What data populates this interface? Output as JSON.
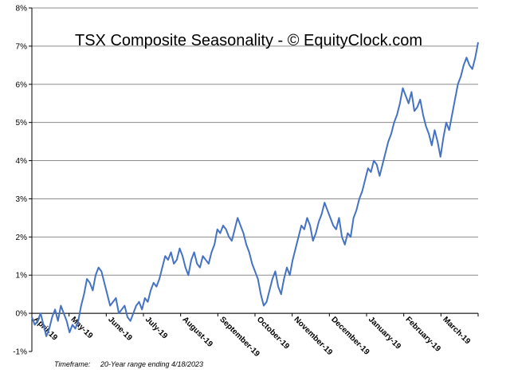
{
  "chart_data": {
    "type": "line",
    "title": "TSX Composite Seasonality - © EquityClock.com",
    "footnote_label": "Timeframe:",
    "footnote_value": "20-Year range ending 4/18/2023",
    "ylim": [
      -1,
      8
    ],
    "y_ticks": [
      "-1%",
      "0%",
      "1%",
      "2%",
      "3%",
      "4%",
      "5%",
      "6%",
      "7%",
      "8%"
    ],
    "x_ticks": [
      "April-19",
      "May-19",
      "June-19",
      "July-19",
      "August-19",
      "September-19",
      "October-19",
      "November-19",
      "December-19",
      "January-19",
      "February-19",
      "March-19"
    ],
    "grid": true,
    "line_color": "#4472c4",
    "series": [
      {
        "values": [
          -0.1,
          -0.3,
          -0.2,
          0.0,
          -0.3,
          -0.6,
          -0.4,
          -0.1,
          0.1,
          -0.2,
          0.2,
          0.0,
          -0.2,
          -0.5,
          -0.3,
          -0.4,
          -0.2,
          0.2,
          0.5,
          0.9,
          0.8,
          0.6,
          1.0,
          1.2,
          1.1,
          0.8,
          0.5,
          0.2,
          0.3,
          0.4,
          0.0,
          0.1,
          0.2,
          -0.1,
          -0.2,
          0.0,
          0.2,
          0.3,
          0.1,
          0.4,
          0.3,
          0.6,
          0.8,
          0.7,
          0.9,
          1.2,
          1.5,
          1.4,
          1.6,
          1.3,
          1.4,
          1.7,
          1.5,
          1.2,
          1.0,
          1.4,
          1.6,
          1.3,
          1.2,
          1.5,
          1.4,
          1.3,
          1.6,
          1.8,
          2.2,
          2.1,
          2.3,
          2.2,
          2.0,
          1.9,
          2.2,
          2.5,
          2.3,
          2.1,
          1.8,
          1.6,
          1.3,
          1.1,
          0.9,
          0.5,
          0.2,
          0.3,
          0.6,
          0.9,
          1.1,
          0.7,
          0.5,
          0.9,
          1.2,
          1.0,
          1.4,
          1.7,
          2.0,
          2.3,
          2.2,
          2.5,
          2.3,
          1.9,
          2.1,
          2.4,
          2.6,
          2.9,
          2.7,
          2.5,
          2.3,
          2.2,
          2.5,
          2.0,
          1.8,
          2.1,
          2.0,
          2.5,
          2.7,
          3.0,
          3.2,
          3.5,
          3.8,
          3.7,
          4.0,
          3.9,
          3.6,
          3.9,
          4.2,
          4.5,
          4.7,
          5.0,
          5.2,
          5.5,
          5.9,
          5.7,
          5.5,
          5.8,
          5.3,
          5.4,
          5.6,
          5.2,
          4.9,
          4.7,
          4.4,
          4.8,
          4.5,
          4.1,
          4.6,
          5.0,
          4.8,
          5.2,
          5.6,
          6.0,
          6.2,
          6.5,
          6.7,
          6.5,
          6.4,
          6.7,
          7.1
        ]
      }
    ]
  }
}
